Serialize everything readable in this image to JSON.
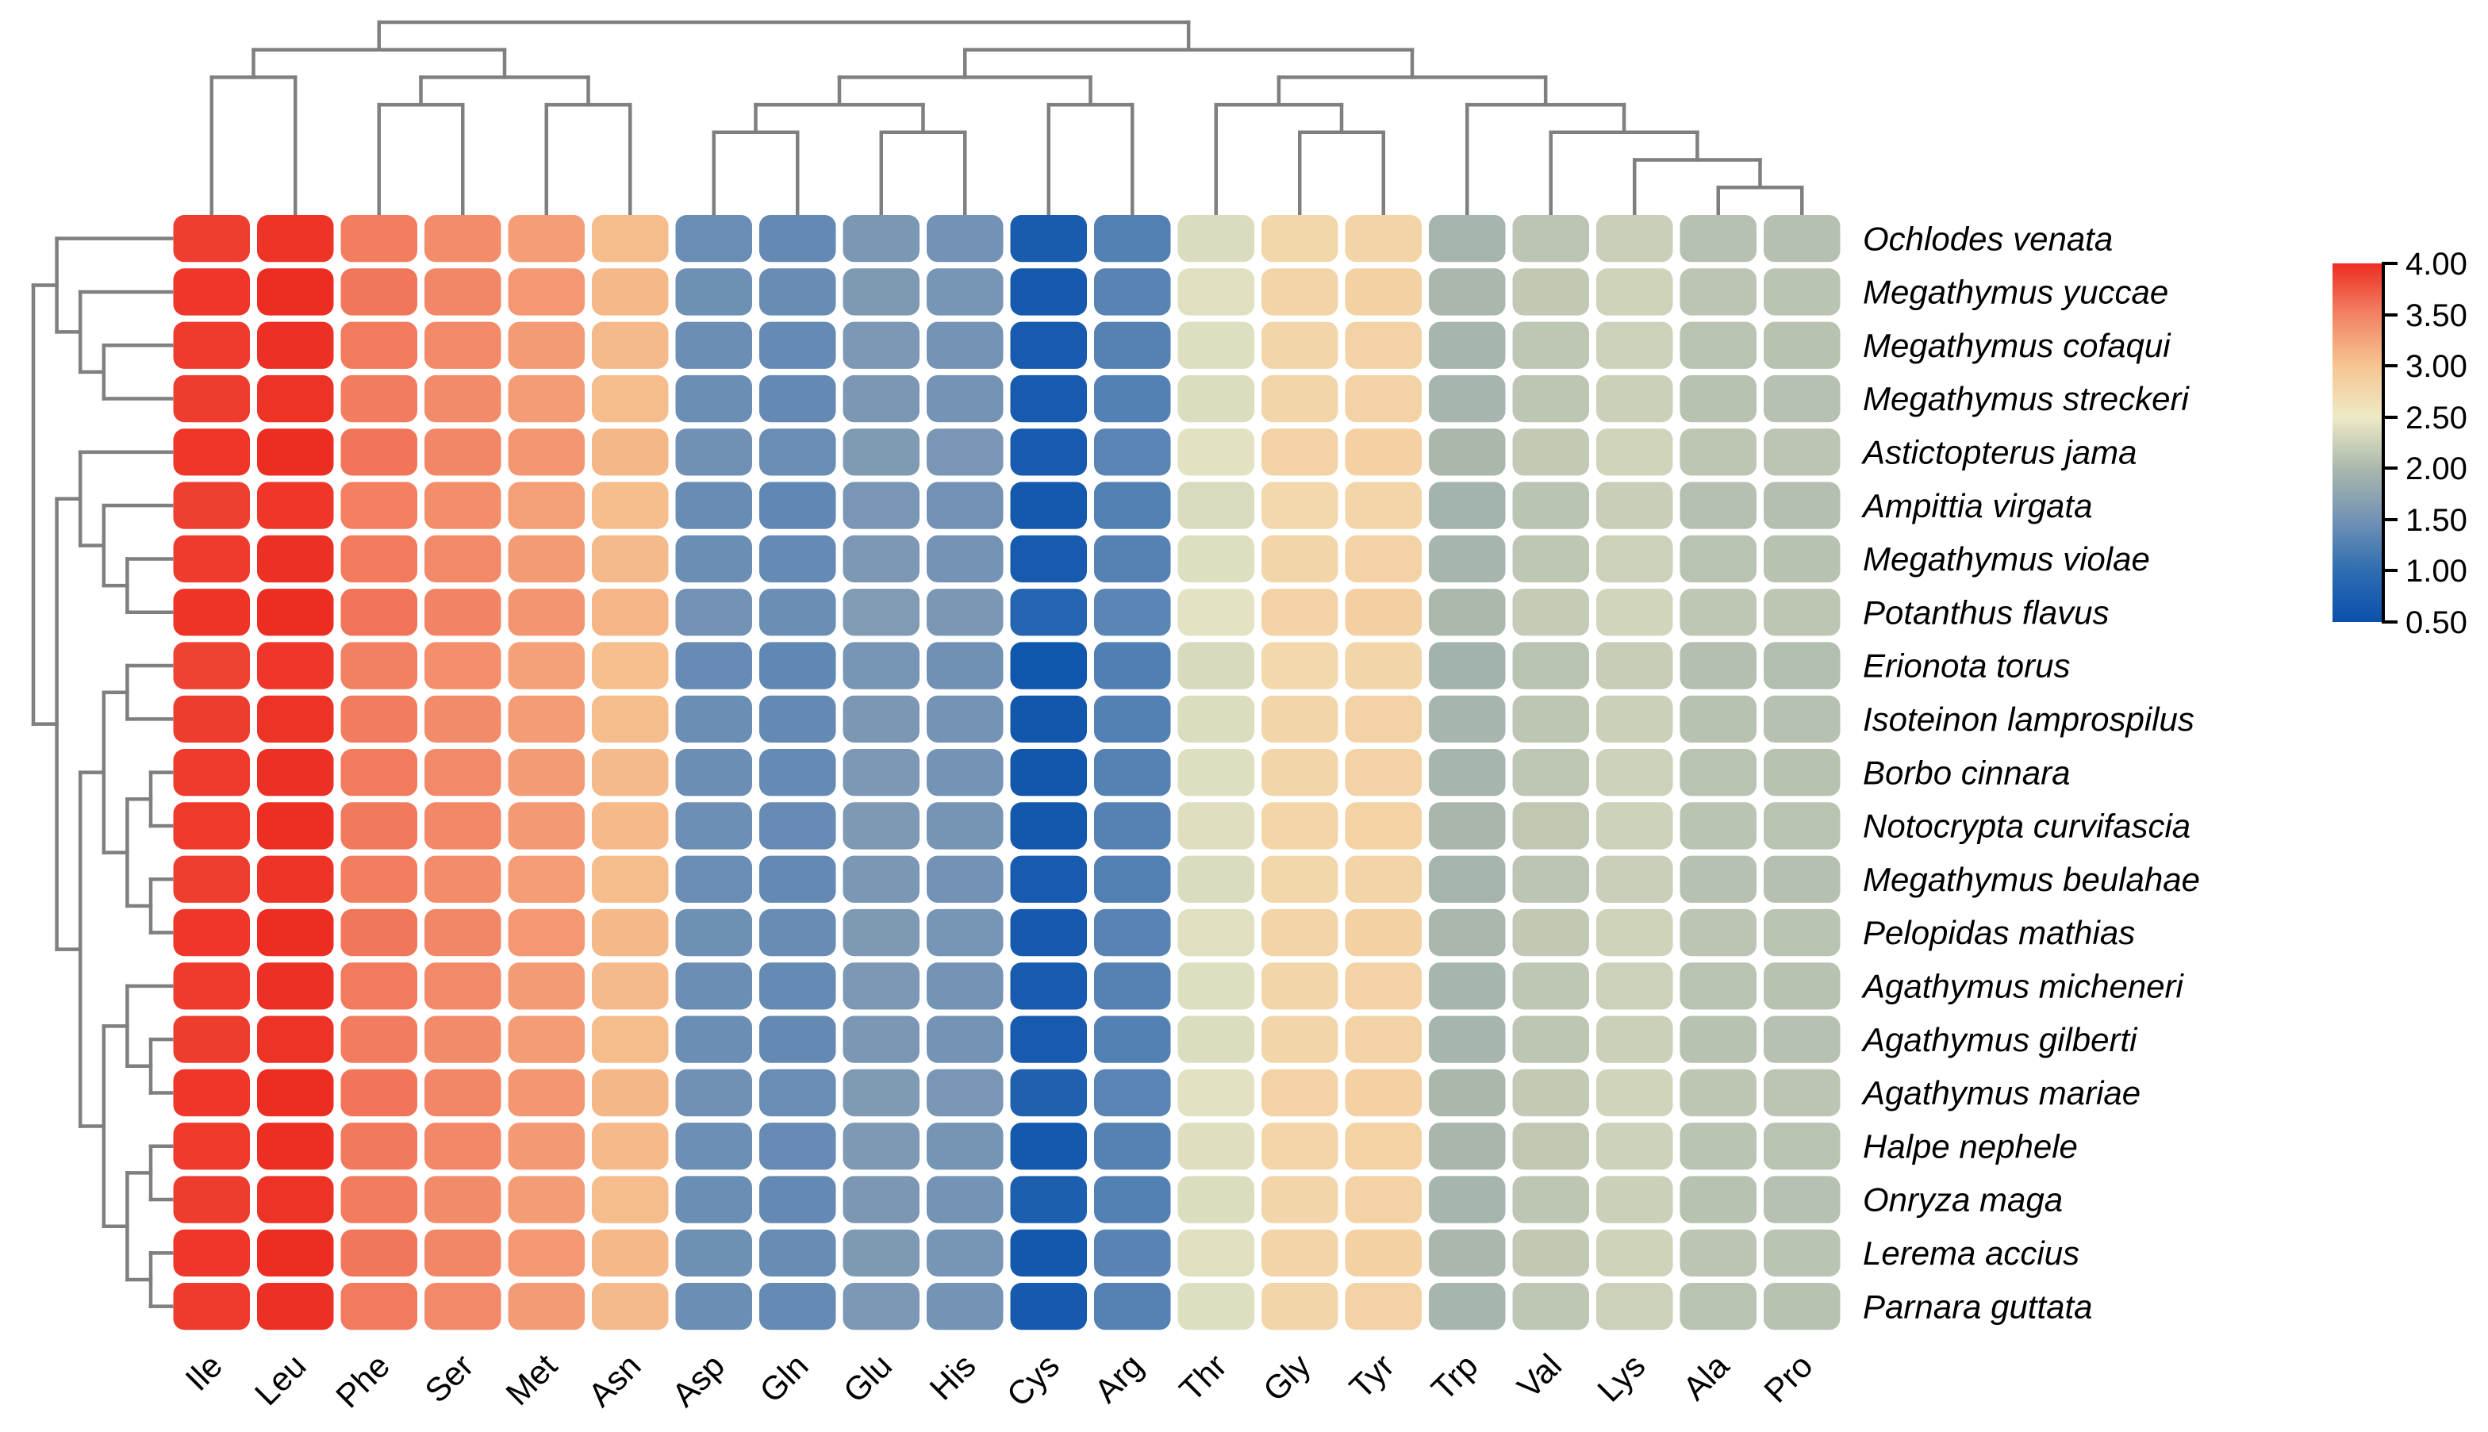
{
  "chart_data": {
    "type": "heatmap",
    "title": "",
    "xlabel": "",
    "ylabel": "",
    "legend_position": "right",
    "grid": "off",
    "columns": [
      "Ile",
      "Leu",
      "Phe",
      "Ser",
      "Met",
      "Asn",
      "Asp",
      "Gln",
      "Glu",
      "His",
      "Cys",
      "Arg",
      "Thr",
      "Gly",
      "Tyr",
      "Trp",
      "Val",
      "Lys",
      "Ala",
      "Pro"
    ],
    "rows": [
      "Ochlodes venata",
      "Megathymus yuccae",
      "Megathymus cofaqui",
      "Megathymus streckeri",
      "Astictopterus jama",
      "Ampittia virgata",
      "Megathymus violae",
      "Potanthus flavus",
      "Erionota torus",
      "Isoteinon lamprospilus",
      "Borbo cinnara",
      "Notocrypta curvifascia",
      "Megathymus beulahae",
      "Pelopidas mathias",
      "Agathymus micheneri",
      "Agathymus gilberti",
      "Agathymus mariae",
      "Halpe nephele",
      "Onryza maga",
      "Lerema accius",
      "Parnara guttata"
    ],
    "values": [
      [
        3.9,
        3.96,
        3.53,
        3.43,
        3.3,
        3.06,
        1.43,
        1.38,
        1.56,
        1.5,
        0.7,
        1.26,
        2.36,
        2.76,
        2.8,
        1.95,
        2.13,
        2.23,
        2.09,
        2.08
      ],
      [
        3.94,
        4.0,
        3.57,
        3.47,
        3.34,
        3.1,
        1.47,
        1.42,
        1.6,
        1.54,
        0.66,
        1.3,
        2.4,
        2.8,
        2.84,
        1.99,
        2.17,
        2.27,
        2.13,
        2.12
      ],
      [
        3.92,
        3.98,
        3.55,
        3.45,
        3.32,
        3.08,
        1.45,
        1.4,
        1.58,
        1.52,
        0.67,
        1.28,
        2.38,
        2.78,
        2.82,
        1.97,
        2.15,
        2.25,
        2.11,
        2.1
      ],
      [
        3.91,
        3.97,
        3.54,
        3.44,
        3.31,
        3.07,
        1.44,
        1.39,
        1.57,
        1.51,
        0.68,
        1.27,
        2.37,
        2.77,
        2.81,
        1.96,
        2.14,
        2.24,
        2.1,
        2.09
      ],
      [
        3.95,
        4.0,
        3.58,
        3.48,
        3.35,
        3.11,
        1.48,
        1.43,
        1.61,
        1.55,
        0.69,
        1.31,
        2.41,
        2.81,
        2.85,
        2.0,
        2.18,
        2.28,
        2.14,
        2.13
      ],
      [
        3.89,
        3.95,
        3.52,
        3.42,
        3.29,
        3.05,
        1.42,
        1.37,
        1.55,
        1.49,
        0.65,
        1.25,
        2.35,
        2.75,
        2.79,
        1.94,
        2.12,
        2.22,
        2.08,
        2.07
      ],
      [
        3.92,
        3.98,
        3.55,
        3.45,
        3.32,
        3.08,
        1.45,
        1.4,
        1.58,
        1.52,
        0.68,
        1.28,
        2.38,
        2.78,
        2.82,
        1.97,
        2.15,
        2.25,
        2.11,
        2.1
      ],
      [
        3.96,
        4.0,
        3.59,
        3.49,
        3.36,
        3.12,
        1.49,
        1.44,
        1.62,
        1.56,
        0.85,
        1.32,
        2.42,
        2.82,
        2.86,
        2.01,
        2.19,
        2.29,
        2.15,
        2.14
      ],
      [
        3.88,
        3.94,
        3.51,
        3.41,
        3.28,
        3.04,
        1.41,
        1.36,
        1.54,
        1.48,
        0.6,
        1.24,
        2.34,
        2.74,
        2.78,
        1.93,
        2.11,
        2.21,
        2.07,
        2.06
      ],
      [
        3.91,
        3.97,
        3.54,
        3.44,
        3.31,
        3.07,
        1.44,
        1.39,
        1.57,
        1.51,
        0.62,
        1.27,
        2.37,
        2.77,
        2.81,
        1.96,
        2.14,
        2.24,
        2.1,
        2.09
      ],
      [
        3.92,
        3.98,
        3.55,
        3.45,
        3.32,
        3.08,
        1.45,
        1.4,
        1.58,
        1.52,
        0.62,
        1.28,
        2.38,
        2.78,
        2.82,
        1.97,
        2.15,
        2.25,
        2.11,
        2.1
      ],
      [
        3.93,
        3.99,
        3.56,
        3.46,
        3.33,
        3.09,
        1.46,
        1.41,
        1.59,
        1.53,
        0.63,
        1.29,
        2.39,
        2.79,
        2.83,
        1.98,
        2.16,
        2.26,
        2.12,
        2.11
      ],
      [
        3.9,
        3.96,
        3.53,
        3.43,
        3.3,
        3.06,
        1.43,
        1.38,
        1.56,
        1.5,
        0.67,
        1.26,
        2.36,
        2.76,
        2.8,
        1.95,
        2.13,
        2.23,
        2.09,
        2.08
      ],
      [
        3.94,
        4.0,
        3.57,
        3.47,
        3.34,
        3.1,
        1.47,
        1.42,
        1.6,
        1.54,
        0.66,
        1.3,
        2.4,
        2.8,
        2.84,
        1.99,
        2.17,
        2.27,
        2.13,
        2.12
      ],
      [
        3.92,
        3.98,
        3.55,
        3.45,
        3.32,
        3.08,
        1.45,
        1.4,
        1.58,
        1.52,
        0.68,
        1.28,
        2.38,
        2.78,
        2.82,
        1.97,
        2.15,
        2.25,
        2.11,
        2.1
      ],
      [
        3.91,
        3.97,
        3.54,
        3.44,
        3.31,
        3.07,
        1.44,
        1.39,
        1.57,
        1.51,
        0.67,
        1.27,
        2.37,
        2.77,
        2.81,
        1.96,
        2.14,
        2.24,
        2.1,
        2.09
      ],
      [
        3.95,
        4.0,
        3.58,
        3.48,
        3.35,
        3.11,
        1.48,
        1.43,
        1.61,
        1.55,
        0.78,
        1.31,
        2.41,
        2.81,
        2.85,
        2.0,
        2.18,
        2.28,
        2.14,
        2.13
      ],
      [
        3.93,
        3.99,
        3.56,
        3.46,
        3.33,
        3.09,
        1.46,
        1.41,
        1.59,
        1.53,
        0.65,
        1.29,
        2.39,
        2.79,
        2.83,
        1.98,
        2.16,
        2.26,
        2.12,
        2.11
      ],
      [
        3.91,
        3.97,
        3.54,
        3.44,
        3.31,
        3.07,
        1.44,
        1.39,
        1.57,
        1.51,
        0.76,
        1.27,
        2.37,
        2.77,
        2.81,
        1.96,
        2.14,
        2.24,
        2.1,
        2.09
      ],
      [
        3.94,
        4.0,
        3.57,
        3.47,
        3.34,
        3.1,
        1.47,
        1.42,
        1.6,
        1.54,
        0.64,
        1.3,
        2.4,
        2.8,
        2.84,
        1.99,
        2.17,
        2.27,
        2.13,
        2.12
      ],
      [
        3.92,
        3.98,
        3.55,
        3.45,
        3.32,
        3.08,
        1.45,
        1.4,
        1.58,
        1.52,
        0.66,
        1.28,
        2.38,
        2.78,
        2.82,
        1.97,
        2.15,
        2.25,
        2.11,
        2.1
      ]
    ],
    "colorbar": {
      "min": 0.5,
      "max": 4.0,
      "tick_labels": [
        "4.00",
        "3.50",
        "3.00",
        "2.50",
        "2.00",
        "1.50",
        "1.00",
        "0.50"
      ]
    },
    "colormap_anchors": [
      {
        "v": 0.5,
        "rgb": [
          10,
          80,
          172
        ]
      },
      {
        "v": 1.0,
        "rgb": [
          47,
          109,
          177
        ]
      },
      {
        "v": 1.5,
        "rgb": [
          115,
          146,
          181
        ]
      },
      {
        "v": 2.0,
        "rgb": [
          170,
          184,
          172
        ]
      },
      {
        "v": 2.5,
        "rgb": [
          238,
          234,
          198
        ]
      },
      {
        "v": 3.0,
        "rgb": [
          246,
          197,
          146
        ]
      },
      {
        "v": 3.5,
        "rgb": [
          242,
          131,
          100
        ]
      },
      {
        "v": 4.0,
        "rgb": [
          237,
          45,
          34
        ]
      }
    ],
    "dendrogram_color": "#7f7f7f",
    "column_dendrogram": [
      [
        [
          0,
          1
        ],
        [
          [
            2,
            3
          ],
          [
            4,
            5
          ]
        ]
      ],
      [
        [
          [
            [
              6,
              7
            ],
            [
              8,
              9
            ]
          ],
          [
            10,
            11
          ]
        ],
        [
          [
            12,
            [
              13,
              14
            ]
          ],
          [
            15,
            [
              16,
              [
                17,
                [
                  18,
                  19
                ]
              ]
            ]
          ]
        ]
      ]
    ],
    "row_dendrogram": [
      [
        0,
        [
          1,
          [
            2,
            3
          ]
        ]
      ],
      [
        [
          4,
          [
            5,
            [
              6,
              7
            ]
          ]
        ],
        [
          [
            [
              8,
              9
            ],
            [
              [
                10,
                11
              ],
              [
                12,
                13
              ]
            ]
          ],
          [
            [
              14,
              [
                15,
                16
              ]
            ],
            [
              [
                17,
                18
              ],
              [
                19,
                20
              ]
            ]
          ]
        ]
      ]
    ]
  }
}
